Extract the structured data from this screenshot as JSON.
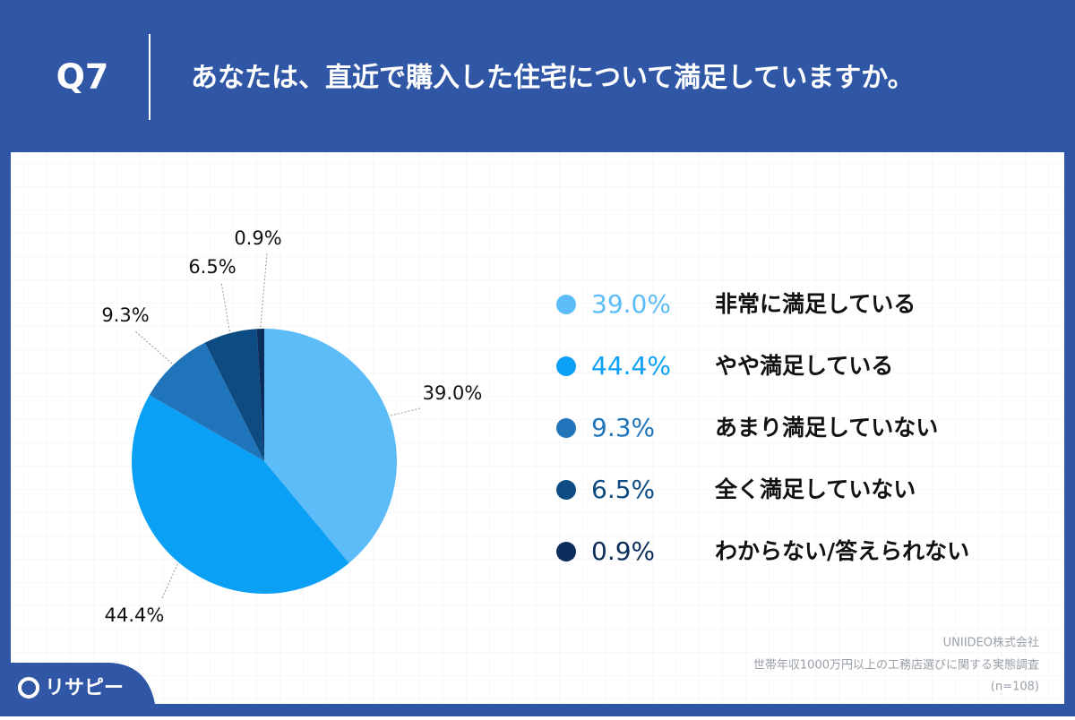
{
  "question": "Q7",
  "title": "あなたは、直近で購入した住宅について満足していますか。",
  "chart_data": {
    "type": "pie",
    "categories": [
      "非常に満足している",
      "やや満足している",
      "あまり満足していない",
      "全く満足していない",
      "わからない/答えられない"
    ],
    "values": [
      39.0,
      44.4,
      9.3,
      6.5,
      0.9
    ],
    "value_labels": [
      "39.0%",
      "44.4%",
      "9.3%",
      "6.5%",
      "0.9%"
    ],
    "colors": [
      "#5bbcf8",
      "#0aa0f6",
      "#1f74ba",
      "#0d4c82",
      "#0b2d5b"
    ]
  },
  "source": [
    "UNIIDEO株式会社",
    "世帯年収1000万円以上の工務店選びに関する実態調査",
    "(n=108)"
  ],
  "logo": "リサピー"
}
